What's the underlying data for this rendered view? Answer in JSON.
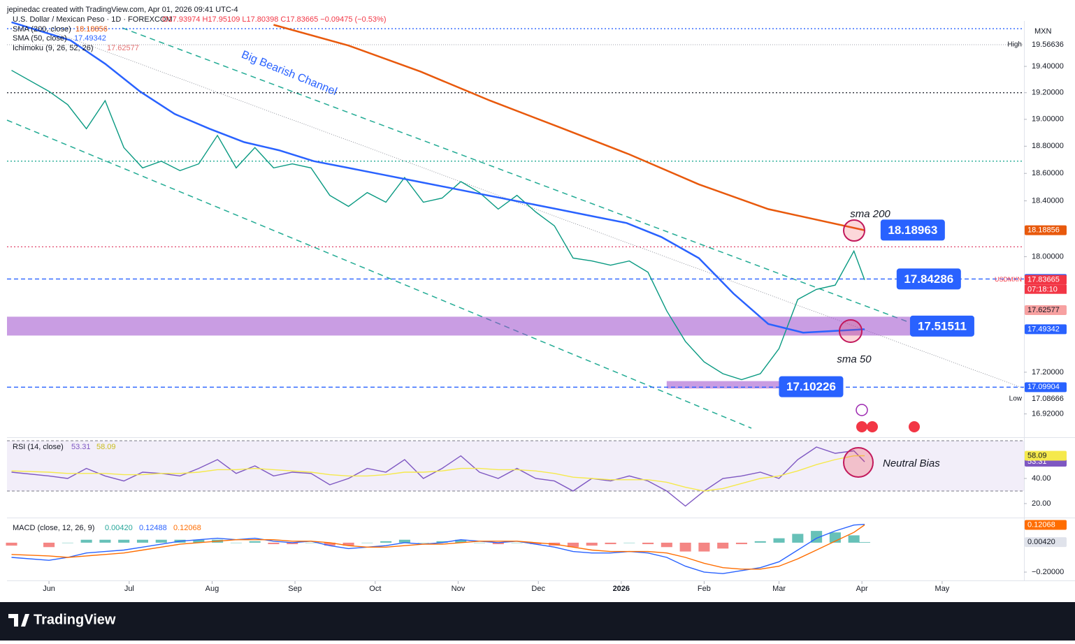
{
  "header": {
    "credit": "jepinedac created with TradingView.com, Apr 01, 2026 09:41 UTC-4",
    "brand": "TradingView"
  },
  "chart_data": [
    {
      "type": "line",
      "title": "U.S. Dollar / Mexican Peso · 1D · FOREXCOM",
      "ohlc": "O17.93974 H17.95109 L17.80398 C17.83665 −0.09475 (−0.53%)",
      "currency": "MXN",
      "log": true,
      "ylim": [
        16.77,
        19.75
      ],
      "yticks": [
        {
          "value": 16.92,
          "label": "16.92000"
        },
        {
          "value": 17.2,
          "label": "17.20000"
        },
        {
          "value": 18.0,
          "label": "18.00000"
        },
        {
          "value": 18.4,
          "label": "18.40000"
        },
        {
          "value": 18.6,
          "label": "18.60000"
        },
        {
          "value": 18.8,
          "label": "18.80000"
        },
        {
          "value": 19.0,
          "label": "19.00000"
        },
        {
          "value": 19.2,
          "label": "19.20000"
        },
        {
          "value": 19.4,
          "label": "19.40000"
        }
      ],
      "xlim": [
        -15.7,
        364.6
      ],
      "xticks": [
        {
          "value": 0,
          "label": "Jun"
        },
        {
          "value": 30,
          "label": "Jul"
        },
        {
          "value": 61,
          "label": "Aug"
        },
        {
          "value": 92,
          "label": "Sep"
        },
        {
          "value": 122,
          "label": "Oct"
        },
        {
          "value": 153,
          "label": "Nov"
        },
        {
          "value": 183,
          "label": "Dec"
        },
        {
          "value": 214,
          "label": "2026"
        },
        {
          "value": 245,
          "label": "Feb"
        },
        {
          "value": 273,
          "label": "Mar"
        },
        {
          "value": 304,
          "label": "Apr"
        },
        {
          "value": 334,
          "label": "May"
        }
      ],
      "x": [
        -14,
        0,
        7,
        14,
        21,
        28,
        35,
        42,
        49,
        56,
        63,
        70,
        77,
        84,
        91,
        98,
        105,
        112,
        119,
        126,
        133,
        140,
        147,
        154,
        161,
        168,
        175,
        182,
        189,
        196,
        203,
        210,
        217,
        224,
        231,
        238,
        245,
        252,
        259,
        266,
        273,
        280,
        287,
        294,
        301,
        305
      ],
      "series": [
        {
          "name": "USDMXN",
          "color": "#089981",
          "countdown": "07:18:10",
          "badge_color": "#f23645",
          "values": [
            19.37,
            19.21,
            19.11,
            18.93,
            19.14,
            18.79,
            18.64,
            18.69,
            18.62,
            18.67,
            18.88,
            18.64,
            18.79,
            18.64,
            18.67,
            18.64,
            18.44,
            18.36,
            18.46,
            18.39,
            18.57,
            18.39,
            18.42,
            18.54,
            18.46,
            18.34,
            18.44,
            18.32,
            18.22,
            17.99,
            17.97,
            17.94,
            17.97,
            17.89,
            17.62,
            17.41,
            17.27,
            17.19,
            17.15,
            17.19,
            17.36,
            17.7,
            17.77,
            17.8,
            18.04,
            17.83665
          ]
        },
        {
          "name": "SMA (200, close)",
          "color": "#e8590c",
          "x": [
            84,
            112,
            139,
            165,
            191,
            217,
            243,
            269,
            305
          ],
          "values": [
            19.72,
            19.56,
            19.36,
            19.14,
            18.94,
            18.74,
            18.52,
            18.34,
            18.18856
          ]
        },
        {
          "name": "SMA (50, close)",
          "color": "#2962ff",
          "x": [
            -14,
            8,
            21,
            34,
            47,
            60,
            73,
            86,
            99,
            112,
            125,
            138,
            151,
            164,
            177,
            190,
            203,
            216,
            229,
            243,
            256,
            269,
            282,
            305
          ],
          "values": [
            19.74,
            19.6,
            19.42,
            19.21,
            19.04,
            18.93,
            18.83,
            18.77,
            18.69,
            18.64,
            18.59,
            18.54,
            18.49,
            18.44,
            18.39,
            18.34,
            18.29,
            18.24,
            18.14,
            17.99,
            17.74,
            17.53,
            17.47,
            17.49342
          ]
        }
      ],
      "indicator": {
        "name": "Ichimoku (9, 26, 52, 26)",
        "value": 17.62577,
        "color": "#f7a1a1"
      },
      "price_lines": [
        {
          "value": 19.69,
          "color": "#2962ff",
          "dash": "2 3"
        },
        {
          "value": 19.56636,
          "color": "#b2b5be",
          "dash": "1 2",
          "label": "High"
        },
        {
          "value": 19.2,
          "color": "#131722",
          "dash": "2 3"
        },
        {
          "value": 18.69,
          "color": "#22ab94",
          "dash": "2 3"
        },
        {
          "value": 18.07,
          "color": "#e0466b",
          "dash": "2 3"
        },
        {
          "value": 17.84286,
          "color": "#2962ff",
          "dash": "6 4",
          "badge": true
        },
        {
          "value": 17.09904,
          "color": "#2962ff",
          "dash": "6 4",
          "badge": true
        },
        {
          "value": 17.08666,
          "color": "none",
          "dash": "0",
          "label": "Low"
        }
      ],
      "zones": [
        {
          "range": [
            17.45,
            17.58
          ],
          "x": [
            -15.7,
            322
          ],
          "color": "#9c4dcc"
        },
        {
          "range": [
            17.09,
            17.14
          ],
          "x": [
            231,
            275
          ],
          "color": "#9c4dcc"
        }
      ],
      "callouts": [
        {
          "value": 18.18963,
          "x": 323
        },
        {
          "value": 17.84286,
          "x": 329
        },
        {
          "value": 17.51511,
          "x": 334
        },
        {
          "value": 17.10226,
          "x": 285
        }
      ],
      "notes": [
        "Big Bearish Channel",
        "sma 200",
        "sma 50"
      ]
    },
    {
      "type": "line",
      "title": "RSI (14, close)",
      "ylim": [
        9.4,
        71.7
      ],
      "yticks": [
        {
          "value": 20,
          "label": "20.00"
        },
        {
          "value": 40,
          "label": "40.00"
        }
      ],
      "levels": [
        70,
        30
      ],
      "xlim": [
        -15.7,
        364.6
      ],
      "x": [
        -14,
        0,
        7,
        14,
        21,
        28,
        35,
        42,
        49,
        56,
        63,
        70,
        77,
        84,
        91,
        98,
        105,
        112,
        119,
        126,
        133,
        140,
        147,
        154,
        161,
        168,
        175,
        182,
        189,
        196,
        203,
        210,
        217,
        224,
        231,
        238,
        245,
        252,
        259,
        266,
        273,
        280,
        287,
        294,
        301,
        305
      ],
      "series": [
        {
          "name": "RSI",
          "color": "#7e57c2",
          "badge_color": "#7e57c2",
          "values": [
            45,
            42,
            40,
            48,
            42,
            38,
            45,
            44,
            42,
            48,
            55,
            44,
            50,
            42,
            45,
            44,
            35,
            40,
            48,
            45,
            55,
            40,
            48,
            58,
            45,
            40,
            48,
            40,
            38,
            30,
            40,
            38,
            42,
            38,
            30,
            18,
            30,
            40,
            42,
            45,
            40,
            55,
            65,
            60,
            62,
            53.31
          ]
        },
        {
          "name": "RSI-based MA",
          "color": "#f5e94c",
          "badge_color": "#f5e94c",
          "values": [
            46,
            45,
            44,
            44,
            44,
            43,
            43,
            44,
            44,
            45,
            47,
            47,
            48,
            47,
            46,
            45,
            43,
            42,
            42,
            43,
            45,
            45,
            46,
            48,
            48,
            47,
            47,
            46,
            44,
            41,
            40,
            39,
            39,
            39,
            37,
            33,
            30,
            32,
            36,
            40,
            42,
            46,
            51,
            55,
            58,
            58.09
          ]
        }
      ],
      "notes": [
        "Neutral Bias"
      ]
    },
    {
      "type": "line",
      "title": "MACD (close, 12, 26, 9)",
      "ylim": [
        -0.252,
        0.166
      ],
      "yticks": [
        {
          "value": -0.2,
          "label": "−0.20000"
        }
      ],
      "xlim": [
        -15.7,
        364.6
      ],
      "x": [
        -14,
        0,
        7,
        14,
        21,
        28,
        35,
        42,
        49,
        56,
        63,
        70,
        77,
        84,
        91,
        98,
        105,
        112,
        119,
        126,
        133,
        140,
        147,
        154,
        161,
        168,
        175,
        182,
        189,
        196,
        203,
        210,
        217,
        224,
        231,
        238,
        245,
        252,
        259,
        266,
        273,
        280,
        287,
        294,
        301,
        305
      ],
      "series": [
        {
          "name": "Histogram",
          "kind": "histogram",
          "color": "#26a69a",
          "color_negative": "#ef5350",
          "badge_color": "#e0e3eb",
          "last_label": "0.00420",
          "values": [
            -0.02,
            -0.03,
            0.0,
            0.02,
            0.02,
            0.02,
            0.02,
            0.02,
            0.02,
            0.02,
            0.02,
            0.0,
            0.01,
            -0.01,
            -0.01,
            0.0,
            -0.02,
            -0.02,
            0.0,
            0.01,
            0.02,
            0.0,
            0.01,
            0.02,
            0.0,
            -0.01,
            0.0,
            -0.01,
            -0.02,
            -0.03,
            -0.02,
            -0.01,
            0.0,
            -0.01,
            -0.03,
            -0.06,
            -0.06,
            -0.04,
            -0.01,
            0.01,
            0.03,
            0.06,
            0.08,
            0.07,
            0.05,
            0.0042
          ]
        },
        {
          "name": "MACD",
          "color": "#2962ff",
          "values": [
            -0.1,
            -0.12,
            -0.1,
            -0.07,
            -0.06,
            -0.05,
            -0.03,
            -0.01,
            0.01,
            0.02,
            0.03,
            0.02,
            0.03,
            0.01,
            0.0,
            0.01,
            -0.02,
            -0.04,
            -0.03,
            -0.02,
            0.0,
            -0.01,
            0.0,
            0.02,
            0.01,
            0.0,
            0.01,
            -0.01,
            -0.03,
            -0.06,
            -0.07,
            -0.07,
            -0.06,
            -0.07,
            -0.1,
            -0.16,
            -0.2,
            -0.21,
            -0.19,
            -0.17,
            -0.13,
            -0.05,
            0.03,
            0.08,
            0.12,
            0.12488
          ]
        },
        {
          "name": "Signal",
          "color": "#ff6d00",
          "badge_color": "#ff6d00",
          "values": [
            -0.08,
            -0.09,
            -0.1,
            -0.09,
            -0.08,
            -0.07,
            -0.05,
            -0.03,
            -0.01,
            0.0,
            0.01,
            0.02,
            0.02,
            0.02,
            0.01,
            0.01,
            0.0,
            -0.02,
            -0.03,
            -0.03,
            -0.02,
            -0.01,
            -0.01,
            0.0,
            0.01,
            0.01,
            0.01,
            0.0,
            -0.01,
            -0.03,
            -0.05,
            -0.06,
            -0.06,
            -0.06,
            -0.07,
            -0.1,
            -0.14,
            -0.17,
            -0.18,
            -0.18,
            -0.16,
            -0.11,
            -0.05,
            0.01,
            0.07,
            0.12068
          ]
        }
      ]
    }
  ]
}
